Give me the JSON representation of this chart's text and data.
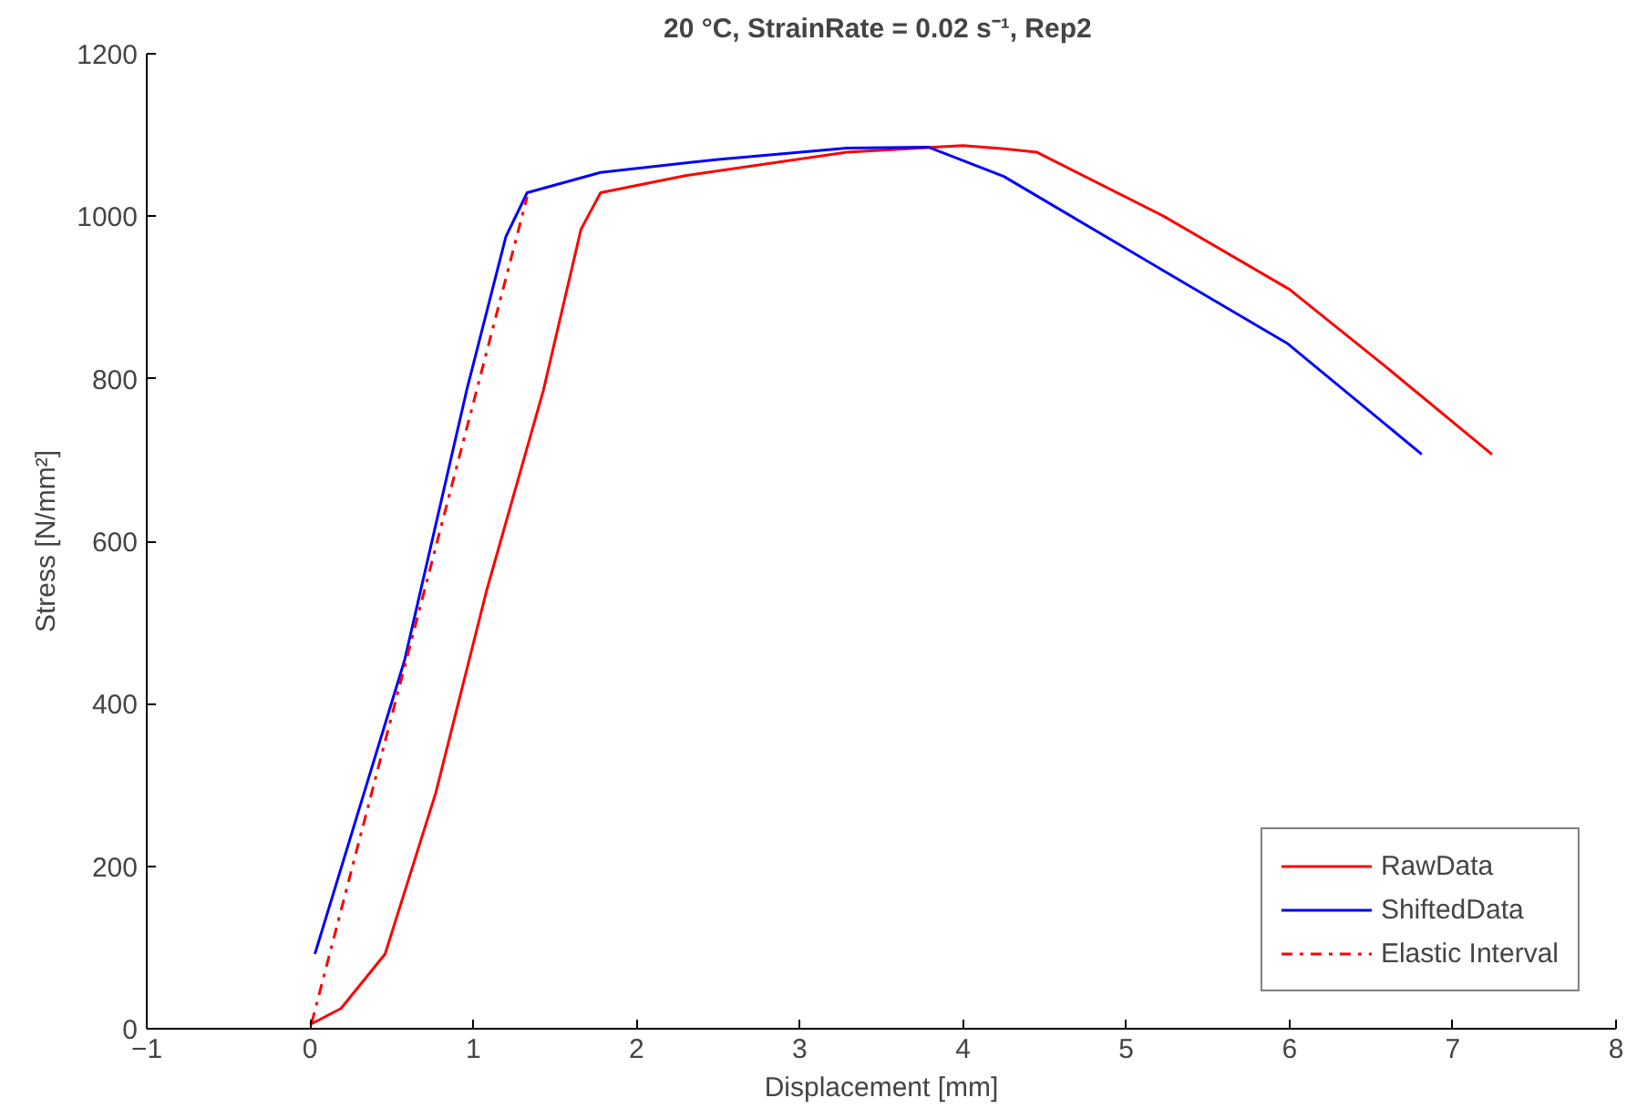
{
  "chart_data": {
    "type": "line",
    "title": "20 °C,  StrainRate = 0.02 s⁻¹, Rep2",
    "xlabel": "Displacement [mm]",
    "ylabel": "Stress [N/mm²]",
    "xlim": [
      -1,
      8
    ],
    "xticks": [
      -1,
      0,
      1,
      2,
      3,
      4,
      5,
      6,
      7,
      8
    ],
    "ylim": [
      0,
      1200
    ],
    "yticks": [
      0,
      200,
      400,
      600,
      800,
      1000,
      1200
    ],
    "grid": false,
    "legend": "bottom right",
    "series": [
      {
        "name": "RawData",
        "color": "#ff0000",
        "line_style": "solid",
        "x": [
          0,
          0.19,
          0.46,
          0.77,
          1.08,
          1.43,
          1.66,
          1.78,
          2.3,
          3.29,
          4.0,
          4.25,
          4.45,
          5.23,
          6.0,
          6.57,
          7.24
        ],
        "values": [
          5,
          25,
          92,
          290,
          538,
          786,
          984,
          1029,
          1050,
          1079,
          1087,
          1083,
          1079,
          1000,
          910,
          818,
          707
        ]
      },
      {
        "name": "ShiftedData",
        "color": "#0000ff",
        "line_style": "solid",
        "x": [
          0.03,
          0.58,
          0.96,
          1.2,
          1.33,
          1.78,
          2.5,
          3.29,
          3.79,
          4.25,
          5.22,
          5.99,
          6.81
        ],
        "values": [
          92,
          454,
          786,
          975,
          1029,
          1054,
          1070,
          1084,
          1085,
          1049,
          934,
          843,
          707
        ]
      },
      {
        "name": "Elastic Interval",
        "color": "#ff0000",
        "line_style": "dashdot",
        "x": [
          0.01,
          1.33
        ],
        "values": [
          7,
          1024
        ]
      }
    ]
  }
}
